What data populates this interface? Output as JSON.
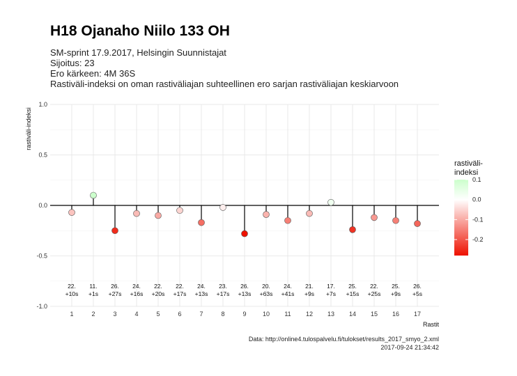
{
  "chart_data": {
    "type": "lollipop",
    "title": "H18 Ojanaho Niilo 133 OH",
    "subtitle": [
      "SM-sprint 17.9.2017, Helsingin Suunnistajat",
      "Sijoitus: 23",
      "Ero kärkeen: 4M 36S",
      "Rastiväli-indeksi on oman rastiväliajan suhteellinen ero sarjan rastiväliajan keskiarvoon"
    ],
    "xlabel": "Rastit",
    "ylabel": "rastiväli-indeksi",
    "ylim": [
      -1.0,
      1.0
    ],
    "yticks": [
      "-1.0",
      "-0.5",
      "0.0",
      "0.5",
      "1.0"
    ],
    "categories": [
      "1",
      "2",
      "3",
      "4",
      "5",
      "6",
      "7",
      "8",
      "9",
      "10",
      "11",
      "12",
      "13",
      "14",
      "15",
      "16",
      "17"
    ],
    "values": [
      -0.07,
      0.1,
      -0.25,
      -0.08,
      -0.1,
      -0.05,
      -0.17,
      -0.02,
      -0.28,
      -0.09,
      -0.15,
      -0.08,
      0.03,
      -0.24,
      -0.12,
      -0.15,
      -0.18
    ],
    "ranks": [
      "22.",
      "11.",
      "26.",
      "24.",
      "22.",
      "22.",
      "24.",
      "23.",
      "26.",
      "20.",
      "24.",
      "21.",
      "17.",
      "25.",
      "22.",
      "25.",
      "26."
    ],
    "diffs": [
      "+10s",
      "+1s",
      "+27s",
      "+16s",
      "+20s",
      "+17s",
      "+13s",
      "+17s",
      "+13s",
      "+63s",
      "+41s",
      "+9s",
      "+7s",
      "+15s",
      "+25s",
      "+9s",
      "+5s"
    ],
    "legend": {
      "title": "rastiväli-\nindeksi",
      "labels": [
        "0.1",
        "0.0",
        "-0.1",
        "-0.2"
      ],
      "colors": {
        "high": "#ccffcc",
        "mid": "#ffffff",
        "low": "#ee1100"
      }
    },
    "grid": true,
    "caption": [
      "Data: http://online4.tulospalvelu.fi/tulokset/results_2017_smyo_2.xml",
      "2017-09-24 21:34:42"
    ]
  }
}
